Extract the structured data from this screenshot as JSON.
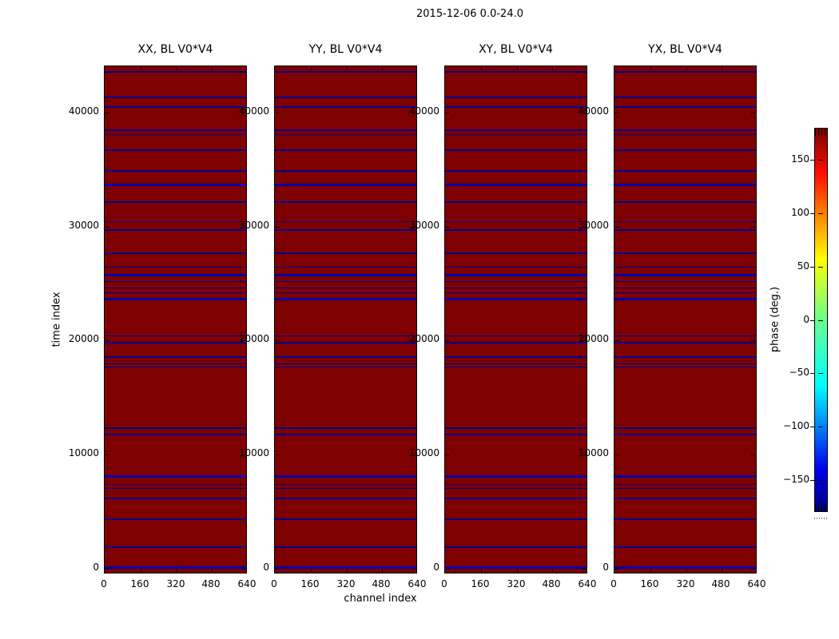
{
  "chart_data": {
    "type": "heatmap",
    "figure_title": "2015-12-06 0.0-24.0",
    "xlabel": "channel index",
    "ylabel": "time index",
    "xlim": [
      0,
      640
    ],
    "xticks": [
      0,
      160,
      320,
      480,
      640
    ],
    "ylim": [
      -500,
      44060
    ],
    "yticks": [
      40000,
      30000,
      20000,
      10000,
      0
    ],
    "grid": false,
    "legend": "none",
    "panels": [
      {
        "id": "xx",
        "title": "XX, BL V0*V4"
      },
      {
        "id": "yy",
        "title": "YY, BL V0*V4"
      },
      {
        "id": "xy",
        "title": "XY, BL V0*V4"
      },
      {
        "id": "yx",
        "title": "YX, BL V0*V4"
      }
    ],
    "heatmap": {
      "background_phase_deg": 180,
      "background_color": "#7f0000",
      "line_color": "#000090",
      "thick_line_color": "#0000a8",
      "flagged_time_rows": [
        {
          "t": 43570,
          "w": 2
        },
        {
          "t": 41330,
          "w": 2
        },
        {
          "t": 40490,
          "w": 2
        },
        {
          "t": 38460,
          "w": 2
        },
        {
          "t": 38040,
          "w": 1
        },
        {
          "t": 36700,
          "w": 2
        },
        {
          "t": 34880,
          "w": 2
        },
        {
          "t": 33690,
          "w": 3
        },
        {
          "t": 32150,
          "w": 2
        },
        {
          "t": 30400,
          "w": 1
        },
        {
          "t": 29690,
          "w": 2
        },
        {
          "t": 27660,
          "w": 2
        },
        {
          "t": 26470,
          "w": 1
        },
        {
          "t": 25770,
          "w": 3
        },
        {
          "t": 25210,
          "w": 1
        },
        {
          "t": 24650,
          "w": 1
        },
        {
          "t": 24230,
          "w": 1
        },
        {
          "t": 23670,
          "w": 3
        },
        {
          "t": 20380,
          "w": 1
        },
        {
          "t": 19820,
          "w": 2
        },
        {
          "t": 18560,
          "w": 2
        },
        {
          "t": 17930,
          "w": 1
        },
        {
          "t": 17650,
          "w": 1
        },
        {
          "t": 12320,
          "w": 2
        },
        {
          "t": 11760,
          "w": 2
        },
        {
          "t": 8050,
          "w": 3
        },
        {
          "t": 7350,
          "w": 1
        },
        {
          "t": 7000,
          "w": 1
        },
        {
          "t": 6160,
          "w": 2
        },
        {
          "t": 4330,
          "w": 2
        },
        {
          "t": 1880,
          "w": 2
        },
        {
          "t": 130,
          "w": 3
        }
      ]
    },
    "colorbar": {
      "label": "phase (deg.)",
      "ticks": [
        150,
        100,
        50,
        0,
        -50,
        -100,
        -150
      ],
      "range": [
        -180,
        180
      ],
      "colormap": "jet"
    }
  }
}
